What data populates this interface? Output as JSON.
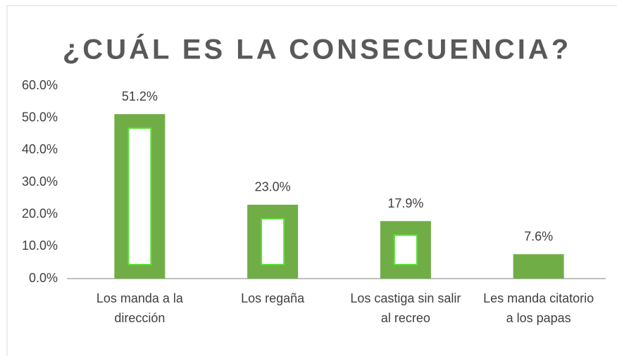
{
  "chart_data": {
    "type": "bar",
    "title": "¿CUÁL ES LA CONSECUENCIA?",
    "categories": [
      "Los manda a la dirección",
      "Los regaña",
      "Los castiga sin salir al recreo",
      "Les manda citatorio a los papas"
    ],
    "values": [
      51.2,
      23.0,
      17.9,
      7.6
    ],
    "value_labels": [
      "51.2%",
      "23.0%",
      "17.9%",
      "7.6%"
    ],
    "color": "#70ad47",
    "ylim": [
      0,
      60
    ],
    "yticks": [
      {
        "value": 0,
        "label": "0.0%"
      },
      {
        "value": 10,
        "label": "10.0%"
      },
      {
        "value": 20,
        "label": "20.0%"
      },
      {
        "value": 30,
        "label": "30.0%"
      },
      {
        "value": 40,
        "label": "40.0%"
      },
      {
        "value": 50,
        "label": "50.0%"
      },
      {
        "value": 60,
        "label": "60.0%"
      }
    ],
    "grid": false
  }
}
